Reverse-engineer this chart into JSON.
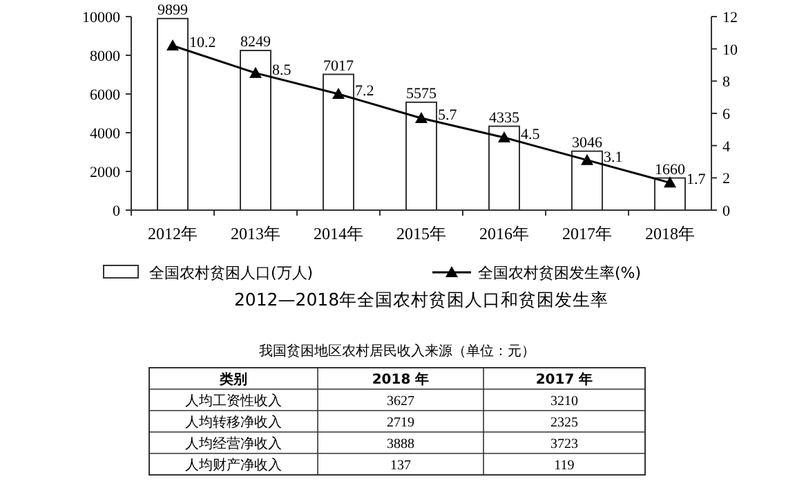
{
  "chart_data": [
    {
      "type": "bar",
      "title": "2012—2018年全国农村贫困人口和贫困发生率",
      "categories": [
        "2012年",
        "2013年",
        "2014年",
        "2015年",
        "2016年",
        "2017年",
        "2018年"
      ],
      "series": [
        {
          "name": "全国农村贫困人口(万人)",
          "type": "bar",
          "color": "#ffffff",
          "values": [
            9899,
            8249,
            7017,
            5575,
            4335,
            3046,
            1660
          ]
        },
        {
          "name": "全国农村贫困发生率(%)",
          "type": "line",
          "axis": "y2",
          "color": "#000000",
          "values": [
            10.2,
            8.5,
            7.2,
            5.7,
            4.5,
            3.1,
            1.7
          ]
        }
      ],
      "ylim": [
        0,
        10000
      ],
      "yticks": [
        0,
        2000,
        4000,
        6000,
        8000,
        10000
      ],
      "y2lim": [
        0,
        12
      ],
      "y2ticks": [
        0,
        2,
        4,
        6,
        8,
        10,
        12
      ],
      "data_labels": true,
      "marker": "triangle",
      "legend": "bottom",
      "grid": false
    },
    {
      "type": "other",
      "data_labels": true,
      "title": "我国贫困地区农村居民收入来源（单位：元）",
      "ylabel": "类别",
      "categories": [
        "人均工资性收入",
        "人均转移净收入",
        "人均经营净收入",
        "人均财产净收入"
      ],
      "series": [
        {
          "name": "2018 年",
          "values": [
            3627,
            2719,
            3888,
            137
          ]
        },
        {
          "name": "2017 年",
          "values": [
            3210,
            2325,
            3723,
            119
          ]
        }
      ]
    }
  ]
}
